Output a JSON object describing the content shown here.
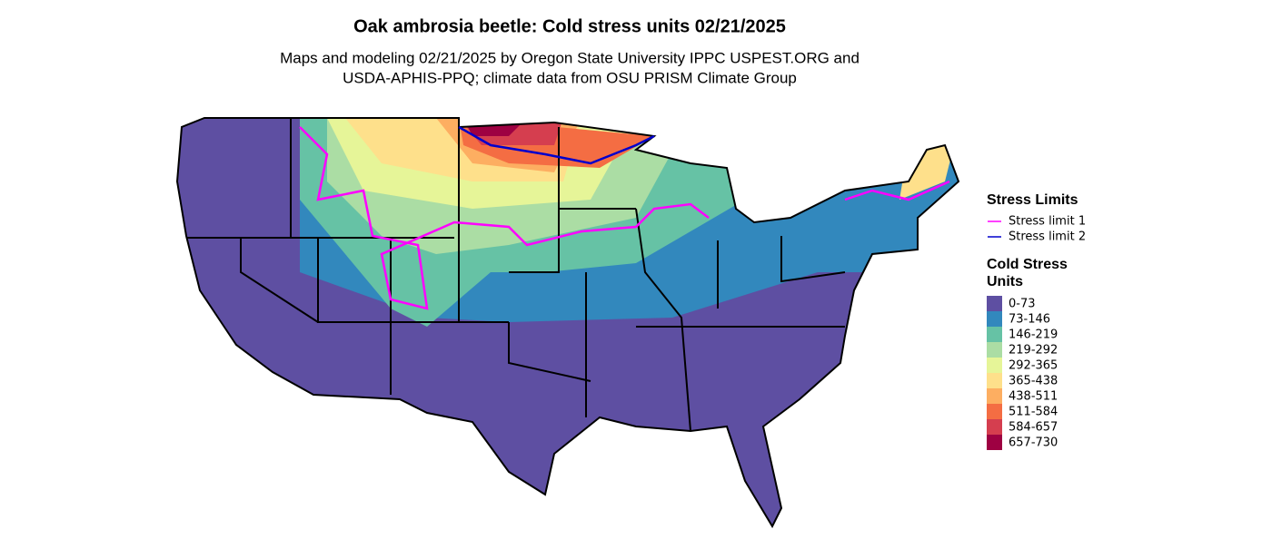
{
  "header": {
    "title": "Oak ambrosia beetle: Cold stress units 02/21/2025",
    "subtitle": [
      "Maps and modeling 02/21/2025 by Oregon State University IPPC USPEST.ORG and",
      "USDA-APHIS-PPQ; climate data from OSU PRISM Climate Group"
    ]
  },
  "legend": {
    "stress_title": "Stress Limits",
    "stress_items": [
      {
        "label": "Stress limit 1",
        "color": "#ff00ff"
      },
      {
        "label": "Stress limit 2",
        "color": "#0000cc"
      }
    ],
    "units_title": [
      "Cold Stress",
      "Units"
    ],
    "units_items": [
      {
        "label": "0-73",
        "color": "#5e4fa2"
      },
      {
        "label": "73-146",
        "color": "#3288bd"
      },
      {
        "label": "146-219",
        "color": "#66c2a5"
      },
      {
        "label": "219-292",
        "color": "#abdda4"
      },
      {
        "label": "292-365",
        "color": "#e6f598"
      },
      {
        "label": "365-438",
        "color": "#fee08b"
      },
      {
        "label": "438-511",
        "color": "#fdae61"
      },
      {
        "label": "511-584",
        "color": "#f46d43"
      },
      {
        "label": "584-657",
        "color": "#d53e4f"
      },
      {
        "label": "657-730",
        "color": "#9e0142"
      }
    ]
  }
}
